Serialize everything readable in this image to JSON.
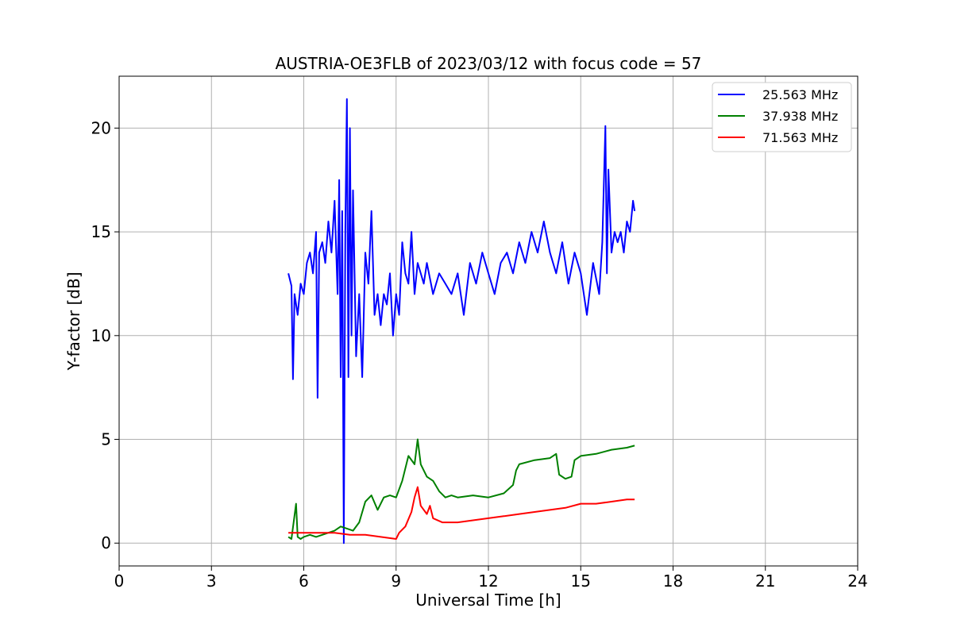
{
  "chart_data": {
    "type": "line",
    "title": "AUSTRIA-OE3FLB of 2023/03/12 with focus code = 57",
    "xlabel": "Universal Time [h]",
    "ylabel": "Y-factor [dB]",
    "xlim": [
      0,
      24
    ],
    "ylim": [
      -1.1,
      22.5
    ],
    "xticks": [
      0,
      3,
      6,
      9,
      12,
      15,
      18,
      21,
      24
    ],
    "yticks": [
      0,
      5,
      10,
      15,
      20
    ],
    "grid": true,
    "legend_position": "top-right",
    "series": [
      {
        "name": "25.563 MHz",
        "color": "#0000ff",
        "x": [
          5.5,
          5.6,
          5.65,
          5.7,
          5.8,
          5.9,
          6.0,
          6.1,
          6.2,
          6.3,
          6.4,
          6.45,
          6.5,
          6.6,
          6.7,
          6.8,
          6.9,
          7.0,
          7.1,
          7.15,
          7.2,
          7.25,
          7.3,
          7.35,
          7.4,
          7.45,
          7.5,
          7.55,
          7.6,
          7.7,
          7.8,
          7.9,
          8.0,
          8.1,
          8.2,
          8.3,
          8.4,
          8.5,
          8.6,
          8.7,
          8.8,
          8.9,
          9.0,
          9.1,
          9.2,
          9.3,
          9.4,
          9.5,
          9.6,
          9.7,
          9.8,
          9.9,
          10.0,
          10.2,
          10.4,
          10.6,
          10.8,
          11.0,
          11.2,
          11.4,
          11.6,
          11.8,
          12.0,
          12.2,
          12.4,
          12.6,
          12.8,
          13.0,
          13.2,
          13.4,
          13.6,
          13.8,
          14.0,
          14.2,
          14.4,
          14.6,
          14.8,
          15.0,
          15.2,
          15.4,
          15.6,
          15.7,
          15.8,
          15.85,
          15.9,
          16.0,
          16.1,
          16.2,
          16.3,
          16.4,
          16.5,
          16.6,
          16.7,
          16.75
        ],
        "values": [
          13.0,
          12.4,
          7.9,
          12.0,
          11.0,
          12.5,
          12.0,
          13.5,
          14.0,
          13.0,
          15.0,
          7.0,
          14.0,
          14.5,
          13.5,
          15.5,
          14.0,
          16.5,
          12.0,
          17.5,
          8.0,
          16.0,
          0.0,
          15.0,
          21.4,
          8.0,
          20.0,
          10.0,
          17.0,
          9.0,
          12.0,
          8.0,
          14.0,
          12.5,
          16.0,
          11.0,
          12.0,
          10.5,
          12.0,
          11.5,
          13.0,
          10.0,
          12.0,
          11.0,
          14.5,
          13.0,
          12.5,
          15.0,
          12.0,
          13.5,
          13.0,
          12.5,
          13.5,
          12.0,
          13.0,
          12.5,
          12.0,
          13.0,
          11.0,
          13.5,
          12.5,
          14.0,
          13.0,
          12.0,
          13.5,
          14.0,
          13.0,
          14.5,
          13.5,
          15.0,
          14.0,
          15.5,
          14.0,
          13.0,
          14.5,
          12.5,
          14.0,
          13.0,
          11.0,
          13.5,
          12.0,
          14.5,
          20.1,
          13.0,
          18.0,
          14.0,
          15.0,
          14.5,
          15.0,
          14.0,
          15.5,
          15.0,
          16.5,
          16.0
        ]
      },
      {
        "name": "37.938 MHz",
        "color": "#008000",
        "x": [
          5.5,
          5.6,
          5.75,
          5.8,
          5.9,
          6.0,
          6.2,
          6.4,
          6.6,
          6.8,
          7.0,
          7.2,
          7.4,
          7.6,
          7.8,
          8.0,
          8.2,
          8.4,
          8.6,
          8.8,
          9.0,
          9.2,
          9.4,
          9.6,
          9.7,
          9.8,
          10.0,
          10.2,
          10.4,
          10.6,
          10.8,
          11.0,
          11.5,
          12.0,
          12.5,
          12.8,
          12.9,
          13.0,
          13.5,
          14.0,
          14.2,
          14.3,
          14.5,
          14.7,
          14.8,
          15.0,
          15.5,
          16.0,
          16.5,
          16.75
        ],
        "values": [
          0.3,
          0.2,
          1.9,
          0.3,
          0.2,
          0.3,
          0.4,
          0.3,
          0.4,
          0.5,
          0.6,
          0.8,
          0.7,
          0.6,
          1.0,
          2.0,
          2.3,
          1.6,
          2.2,
          2.3,
          2.2,
          3.0,
          4.2,
          3.8,
          5.0,
          3.8,
          3.2,
          3.0,
          2.5,
          2.2,
          2.3,
          2.2,
          2.3,
          2.2,
          2.4,
          2.8,
          3.5,
          3.8,
          4.0,
          4.1,
          4.3,
          3.3,
          3.1,
          3.2,
          4.0,
          4.2,
          4.3,
          4.5,
          4.6,
          4.7
        ]
      },
      {
        "name": "71.563 MHz",
        "color": "#ff0000",
        "x": [
          5.5,
          6.0,
          6.5,
          7.0,
          7.5,
          8.0,
          8.5,
          9.0,
          9.1,
          9.3,
          9.5,
          9.6,
          9.7,
          9.8,
          10.0,
          10.1,
          10.2,
          10.5,
          11.0,
          11.5,
          12.0,
          12.5,
          13.0,
          13.5,
          14.0,
          14.5,
          15.0,
          15.5,
          16.0,
          16.5,
          16.75
        ],
        "values": [
          0.5,
          0.5,
          0.5,
          0.5,
          0.4,
          0.4,
          0.3,
          0.2,
          0.5,
          0.8,
          1.5,
          2.2,
          2.7,
          1.8,
          1.4,
          1.8,
          1.2,
          1.0,
          1.0,
          1.1,
          1.2,
          1.3,
          1.4,
          1.5,
          1.6,
          1.7,
          1.9,
          1.9,
          2.0,
          2.1,
          2.1
        ]
      }
    ]
  }
}
